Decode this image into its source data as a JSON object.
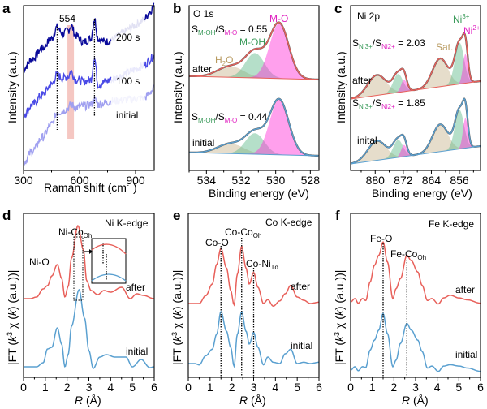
{
  "chart_data": [
    {
      "panel": "a",
      "type": "line",
      "title": "",
      "xlabel": "Raman shift (cm⁻¹)",
      "ylabel": "Intensity (a.u.)",
      "xlim": [
        300,
        1000
      ],
      "xticks": [
        "300",
        "600",
        "900"
      ],
      "annotations": [
        "554"
      ],
      "highlight_band": [
        535,
        570
      ],
      "reference_lines_x": [
        480,
        680
      ],
      "series": [
        {
          "name": "200 s",
          "color": "#0a0a9a",
          "x": [
            300,
            350,
            400,
            450,
            480,
            510,
            540,
            554,
            580,
            620,
            660,
            680,
            700,
            740,
            770
          ],
          "y": [
            0.62,
            0.68,
            0.74,
            0.8,
            0.87,
            0.83,
            0.85,
            0.88,
            0.82,
            0.78,
            0.8,
            0.92,
            0.8,
            0.78,
            0.79
          ]
        },
        {
          "name": "100 s",
          "color": "#4a4ae6",
          "x": [
            300,
            350,
            400,
            450,
            480,
            510,
            540,
            554,
            580,
            620,
            660,
            680,
            700,
            740,
            770
          ],
          "y": [
            0.34,
            0.4,
            0.46,
            0.52,
            0.58,
            0.56,
            0.57,
            0.6,
            0.55,
            0.54,
            0.55,
            0.68,
            0.52,
            0.54,
            0.55
          ]
        },
        {
          "name": "initial",
          "color": "#a0a0f0",
          "x": [
            300,
            350,
            400,
            450,
            480,
            510,
            540,
            554,
            580,
            620,
            660,
            680,
            700,
            740,
            770
          ],
          "y": [
            0.05,
            0.12,
            0.2,
            0.28,
            0.35,
            0.36,
            0.38,
            0.4,
            0.38,
            0.39,
            0.4,
            0.43,
            0.4,
            0.41,
            0.42
          ]
        }
      ],
      "right_segments_note": "faded continuation 770-950, bright segment 950-1000"
    },
    {
      "panel": "b",
      "type": "area",
      "title": "O 1s",
      "xlabel": "Binding energy (eV)",
      "ylabel": "Intensity (a.u.)",
      "xlim": [
        535,
        527.5
      ],
      "xticks": [
        "534",
        "532",
        "530",
        "528"
      ],
      "components": [
        {
          "name": "H₂O",
          "color": "#c8b48c",
          "center": 532.6
        },
        {
          "name": "M-OH",
          "color": "#5cb887",
          "center": 531.2
        },
        {
          "name": "M-O",
          "color": "#ff2cd8",
          "center": 529.8
        }
      ],
      "series": [
        {
          "name": "after",
          "color": "#e8605a",
          "ratio_label": "S",
          "ratio_sub1": "M-OH",
          "ratio_sub2": "M-O",
          "ratio_value": "0.55",
          "peaks": [
            {
              "center": 532.6,
              "height": 0.2
            },
            {
              "center": 531.2,
              "height": 0.45
            },
            {
              "center": 529.8,
              "height": 1.0
            }
          ]
        },
        {
          "name": "initial",
          "color": "#5aa0d0",
          "ratio_label": "S",
          "ratio_sub1": "M-OH",
          "ratio_sub2": "M-O",
          "ratio_value": "0.44",
          "peaks": [
            {
              "center": 532.6,
              "height": 0.18
            },
            {
              "center": 531.2,
              "height": 0.38
            },
            {
              "center": 529.8,
              "height": 1.0
            }
          ]
        }
      ]
    },
    {
      "panel": "c",
      "type": "area",
      "title": "Ni 2p",
      "xlabel": "Binding energy (eV)",
      "ylabel": "Intensity (a.u.)",
      "xlim": [
        887,
        850
      ],
      "xticks": [
        "880",
        "872",
        "864",
        "856"
      ],
      "components": [
        {
          "name": "Sat.",
          "color": "#c8b48c"
        },
        {
          "name": "Ni³⁺",
          "color": "#5cb887"
        },
        {
          "name": "Ni²⁺",
          "color": "#ff2cd8"
        }
      ],
      "series": [
        {
          "name": "after",
          "color": "#e8605a",
          "ratio_value": "2.03",
          "peaks": [
            {
              "center": 879.5,
              "height": 0.42,
              "comp": "Sat."
            },
            {
              "center": 873.5,
              "height": 0.38,
              "comp": "Ni3+"
            },
            {
              "center": 871.8,
              "height": 0.25,
              "comp": "Ni2+"
            },
            {
              "center": 861.5,
              "height": 0.58,
              "comp": "Sat."
            },
            {
              "center": 856.0,
              "height": 0.85,
              "comp": "Ni3+"
            },
            {
              "center": 854.3,
              "height": 0.6,
              "comp": "Ni2+"
            }
          ]
        },
        {
          "name": "inital",
          "color": "#5aa0d0",
          "ratio_value": "1.85",
          "peaks": [
            {
              "center": 879.5,
              "height": 0.4,
              "comp": "Sat."
            },
            {
              "center": 873.5,
              "height": 0.36,
              "comp": "Ni3+"
            },
            {
              "center": 871.8,
              "height": 0.24,
              "comp": "Ni2+"
            },
            {
              "center": 861.5,
              "height": 0.56,
              "comp": "Sat."
            },
            {
              "center": 856.0,
              "height": 0.8,
              "comp": "Ni3+"
            },
            {
              "center": 854.3,
              "height": 0.62,
              "comp": "Ni2+"
            }
          ]
        }
      ]
    },
    {
      "panel": "d",
      "type": "line",
      "title": "Ni K-edge",
      "xlabel": "R (Å)",
      "ylabel": "|FT (k³ χ (k) (a.u.))|",
      "xlim": [
        0,
        6
      ],
      "xticks": [
        "0",
        "1",
        "2",
        "3",
        "4",
        "5",
        "6"
      ],
      "annotations": [
        "Ni-O",
        "Ni-Co",
        "Oh"
      ],
      "series": [
        {
          "name": "after",
          "color": "#e8605a",
          "x": [
            0,
            0.3,
            0.6,
            0.9,
            1.1,
            1.3,
            1.55,
            1.75,
            1.9,
            2.05,
            2.2,
            2.5,
            2.75,
            2.9,
            3.1,
            3.4,
            3.7,
            4.0,
            4.5,
            4.9,
            5.2,
            5.5,
            6.0
          ],
          "y": [
            0.0,
            0.0,
            0.02,
            0.12,
            0.16,
            0.28,
            0.42,
            0.25,
            0.02,
            0.15,
            0.5,
            0.9,
            0.6,
            0.22,
            0.1,
            0.05,
            0.1,
            0.08,
            0.14,
            0.0,
            0.06,
            0.04,
            0.0
          ]
        },
        {
          "name": "initial",
          "color": "#5aa0d0",
          "x": [
            0,
            0.3,
            0.6,
            0.9,
            1.1,
            1.3,
            1.55,
            1.75,
            1.9,
            2.05,
            2.2,
            2.55,
            2.8,
            3.0,
            3.2,
            3.5,
            3.8,
            4.2,
            4.7,
            5.0,
            5.4,
            5.8,
            6.0
          ],
          "y": [
            0.0,
            0.0,
            0.0,
            0.05,
            0.22,
            0.24,
            0.48,
            0.28,
            0.0,
            0.15,
            0.5,
            0.95,
            0.6,
            0.2,
            -0.02,
            0.12,
            0.15,
            0.12,
            0.12,
            0.0,
            0.09,
            -0.01,
            0.0
          ]
        }
      ]
    },
    {
      "panel": "e",
      "type": "line",
      "title": "Co K-edge",
      "xlabel": "R (Å)",
      "ylabel": "|FT (k³ χ (k) (a.u.))|",
      "xlim": [
        0,
        6
      ],
      "xticks": [
        "0",
        "1",
        "2",
        "3",
        "4",
        "5",
        "6"
      ],
      "annotations": [
        "Co-O",
        "Co-Co",
        "Oh",
        "Co-Ni",
        "Td"
      ],
      "reference_lines_x": [
        1.5,
        2.45,
        3.0
      ],
      "series": [
        {
          "name": "after",
          "color": "#e8605a",
          "x": [
            0,
            0.3,
            0.5,
            0.8,
            1.1,
            1.3,
            1.5,
            1.75,
            1.95,
            2.1,
            2.25,
            2.45,
            2.65,
            2.8,
            3.0,
            3.2,
            3.45,
            3.65,
            3.9,
            4.2,
            4.45,
            4.7,
            5.0,
            5.3,
            5.6,
            6.0
          ],
          "y": [
            0.0,
            0.0,
            0.0,
            0.12,
            0.3,
            0.6,
            0.85,
            0.55,
            0.2,
            -0.02,
            0.45,
            0.88,
            0.55,
            0.3,
            0.48,
            0.25,
            0.0,
            0.06,
            -0.04,
            0.04,
            0.15,
            0.28,
            0.1,
            0.05,
            0.0,
            0.02
          ]
        },
        {
          "name": "initial",
          "color": "#5aa0d0",
          "x": [
            0,
            0.3,
            0.5,
            0.8,
            1.1,
            1.3,
            1.5,
            1.75,
            1.95,
            2.1,
            2.25,
            2.45,
            2.65,
            2.8,
            3.0,
            3.2,
            3.45,
            3.65,
            3.9,
            4.2,
            4.45,
            4.7,
            5.0,
            5.3,
            5.6,
            6.0
          ],
          "y": [
            0.0,
            0.0,
            -0.02,
            0.12,
            0.22,
            0.45,
            0.8,
            0.5,
            0.25,
            -0.04,
            0.45,
            0.8,
            0.5,
            0.3,
            0.48,
            0.25,
            -0.02,
            0.1,
            0.02,
            0.0,
            0.15,
            0.22,
            0.0,
            0.02,
            0.0,
            0.02
          ]
        }
      ]
    },
    {
      "panel": "f",
      "type": "line",
      "title": "Fe K-edge",
      "xlabel": "R (Å)",
      "ylabel": "|FT (k³ χ (k) (a.u.))|",
      "xlim": [
        0,
        6
      ],
      "xticks": [
        "0",
        "1",
        "2",
        "3",
        "4",
        "5",
        "6"
      ],
      "annotations": [
        "Fe-O",
        "Fe-Co",
        "Oh"
      ],
      "reference_lines_x": [
        1.5,
        2.6
      ],
      "series": [
        {
          "name": "after",
          "color": "#e8605a",
          "x": [
            0,
            0.2,
            0.35,
            0.55,
            0.7,
            0.9,
            1.1,
            1.3,
            1.5,
            1.7,
            1.95,
            2.1,
            2.3,
            2.6,
            2.8,
            3.1,
            3.3,
            3.55,
            3.75,
            4.05,
            4.3,
            4.6,
            5.0,
            5.4,
            6.0
          ],
          "y": [
            0.0,
            0.05,
            -0.02,
            0.05,
            0.02,
            0.3,
            0.55,
            0.7,
            0.9,
            0.6,
            0.05,
            0.2,
            0.35,
            0.7,
            0.62,
            0.45,
            0.25,
            0.02,
            0.05,
            -0.03,
            0.06,
            0.1,
            0.06,
            0.03,
            -0.02
          ]
        },
        {
          "name": "initial",
          "color": "#5aa0d0",
          "x": [
            0,
            0.2,
            0.35,
            0.55,
            0.7,
            0.9,
            1.1,
            1.3,
            1.5,
            1.7,
            1.95,
            2.1,
            2.3,
            2.6,
            2.8,
            3.1,
            3.3,
            3.55,
            3.75,
            4.05,
            4.3,
            4.6,
            5.0,
            5.4,
            6.0
          ],
          "y": [
            0.0,
            0.05,
            -0.01,
            0.05,
            0.04,
            0.3,
            0.45,
            0.6,
            0.85,
            0.55,
            0.05,
            0.15,
            0.4,
            0.7,
            0.6,
            0.45,
            0.28,
            0.03,
            0.06,
            -0.02,
            0.06,
            0.08,
            0.06,
            0.03,
            -0.02
          ]
        }
      ]
    }
  ],
  "labels": {
    "a": "a",
    "b": "b",
    "c": "c",
    "d": "d",
    "e": "e",
    "f": "f",
    "raman_peak": "554",
    "s200": "200 s",
    "s100": "100 s",
    "initial": "initial",
    "inital": "inital",
    "after": "after",
    "o1s": "O 1s",
    "ni2p": "Ni 2p",
    "h2o_h": "H",
    "h2o_2": "2",
    "h2o_o": "O",
    "moh": "M-OH",
    "mo": "M-O",
    "S": "S",
    "slash": "/",
    "sub_moh": "M-OH",
    "sub_mo": "M-O",
    "eq_055": " = 0.55",
    "eq_044": " = 0.44",
    "sub_ni3": "Ni3+",
    "sub_ni2": "Ni2+",
    "eq_203": " = 2.03",
    "eq_185": " = 1.85",
    "sat": "Sat.",
    "ni3_base": "Ni",
    "ni3_sup": "3+",
    "ni2_base": "Ni",
    "ni2_sup": "2+",
    "ni_k": "Ni K-edge",
    "co_k": "Co K-edge",
    "fe_k": "Fe K-edge",
    "ni_o": "Ni-O",
    "ni_co": "Ni-Co",
    "oh": "Oh",
    "co_o": "Co-O",
    "co_co": "Co-Co",
    "co_ni": "Co-Ni",
    "td": "Td",
    "fe_o": "Fe-O",
    "fe_co": "Fe-Co",
    "raman_x": "Raman shift (cm",
    "raman_x_sup": "-1",
    "raman_x_end": ")",
    "be_x": "Binding energy (eV)",
    "r_italic": "R",
    "r_unit": " (Å)",
    "intensity": "Intensity (a.u.)",
    "ft_a": "|FT (",
    "ft_k": "k",
    "ft_3": "3",
    "ft_chi": " χ (",
    "ft_k2": "k",
    "ft_end": ") (a.u.))|"
  },
  "colors": {
    "after": "#e8605a",
    "initial": "#5aa0d0",
    "raman_200": "#0a0a9a",
    "raman_100": "#4a4ae6",
    "raman_init": "#a0a0f0",
    "band": "#f2b4ae",
    "h2o": "#c8b48c",
    "moh": "#5cb887",
    "mo": "#ff2cd8",
    "green_text": "#3a9a5a",
    "magenta_text": "#e020c0",
    "tan_text": "#b89a60"
  }
}
